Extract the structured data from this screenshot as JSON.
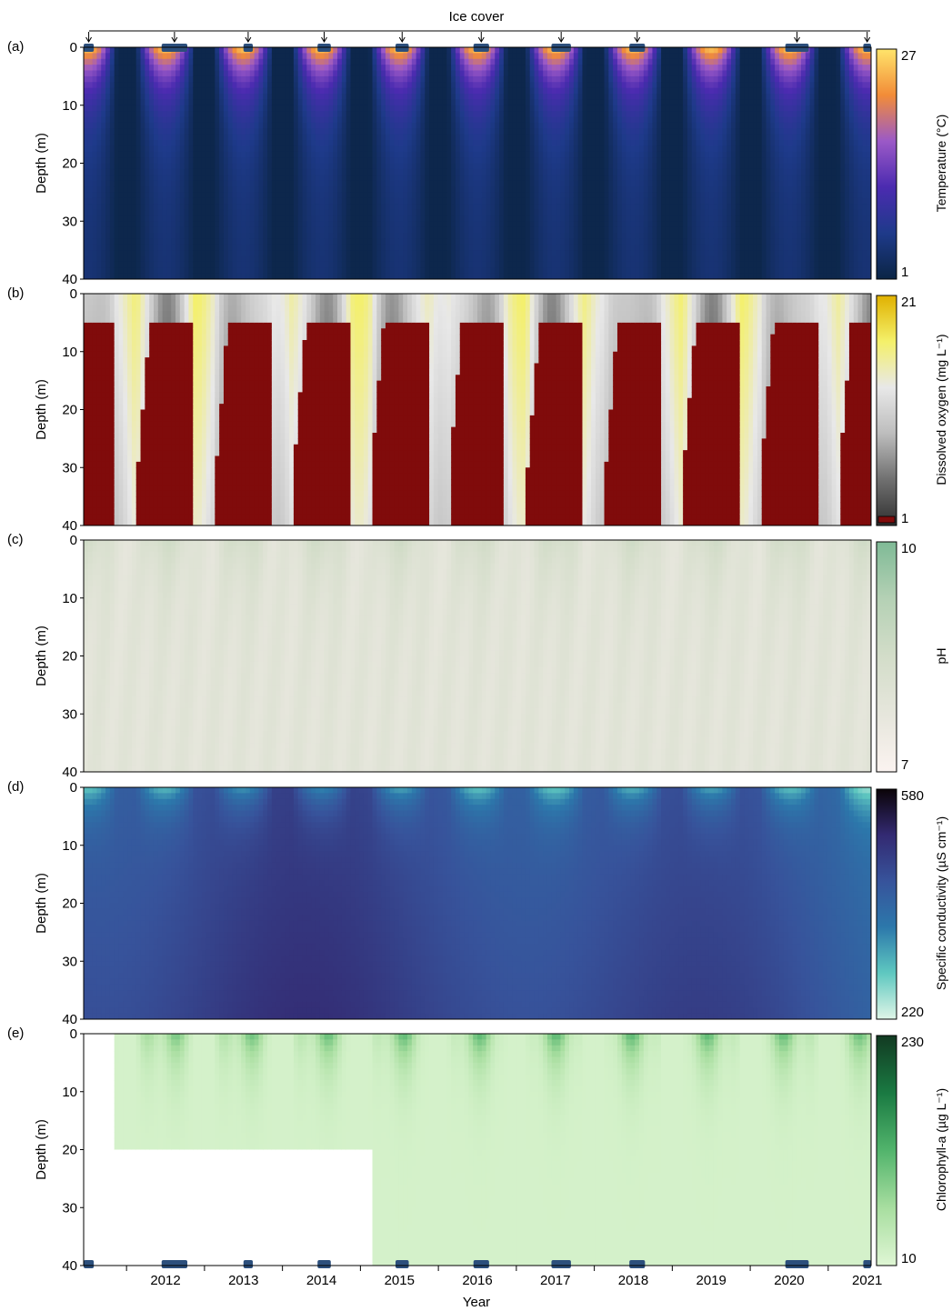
{
  "figure": {
    "ice_cover_label": "Ice cover",
    "x_axis_label": "Year",
    "x_ticks": [
      "2012",
      "2013",
      "2014",
      "2015",
      "2016",
      "2017",
      "2018",
      "2019",
      "2020",
      "2021"
    ],
    "ice_cover_periods": [
      [
        2011.45,
        2011.58
      ],
      [
        2012.45,
        2012.78
      ],
      [
        2013.5,
        2013.62
      ],
      [
        2014.45,
        2014.62
      ],
      [
        2015.45,
        2015.62
      ],
      [
        2016.45,
        2016.65
      ],
      [
        2017.45,
        2017.7
      ],
      [
        2018.45,
        2018.65
      ],
      [
        2020.45,
        2020.75
      ],
      [
        2021.45,
        2021.55
      ]
    ]
  },
  "chart_data": [
    {
      "type": "heatmap",
      "panel_label": "(a)",
      "ylabel": "Depth (m)",
      "y_ticks": [
        "0",
        "10",
        "20",
        "30",
        "40"
      ],
      "ylim": [
        0,
        40
      ],
      "colorbar_label": "Temperature (°C)",
      "colorbar_max": "27",
      "colorbar_min": "1",
      "colors": [
        "#0b2545",
        "#1e3a8a",
        "#4b2bb0",
        "#9b59c7",
        "#f28c38",
        "#ffe46b"
      ]
    },
    {
      "type": "heatmap",
      "panel_label": "(b)",
      "ylabel": "Depth (m)",
      "y_ticks": [
        "0",
        "10",
        "20",
        "30",
        "40"
      ],
      "ylim": [
        0,
        40
      ],
      "colorbar_label": "Dissolved oxygen (mg L⁻¹)",
      "colorbar_max": "21",
      "colorbar_min": "1",
      "anoxic_color": "#800b0b",
      "colors": [
        "#303030",
        "#707070",
        "#bdbdbd",
        "#e8e8e8",
        "#f4f06a",
        "#e0b100"
      ]
    },
    {
      "type": "heatmap",
      "panel_label": "(c)",
      "ylabel": "Depth (m)",
      "y_ticks": [
        "0",
        "10",
        "20",
        "30",
        "40"
      ],
      "ylim": [
        0,
        40
      ],
      "colorbar_label": "pH",
      "colorbar_max": "10",
      "colorbar_min": "7",
      "colors": [
        "#fbf3f0",
        "#e6e6dc",
        "#d3ddc9",
        "#b5d1b5",
        "#7fba96"
      ]
    },
    {
      "type": "heatmap",
      "panel_label": "(d)",
      "ylabel": "Depth (m)",
      "y_ticks": [
        "0",
        "10",
        "20",
        "30",
        "40"
      ],
      "ylim": [
        0,
        40
      ],
      "colorbar_label": "Specific conductivity (µS cm⁻¹)",
      "colorbar_max": "580",
      "colorbar_min": "220",
      "colors": [
        "#dff5e7",
        "#5fc8c0",
        "#2c78ab",
        "#37539b",
        "#332a72",
        "#0b0408"
      ]
    },
    {
      "type": "heatmap",
      "panel_label": "(e)",
      "ylabel": "Depth (m)",
      "y_ticks": [
        "0",
        "10",
        "20",
        "30",
        "40"
      ],
      "ylim": [
        0,
        40
      ],
      "colorbar_label": "Chlorophyll-a (µg L⁻¹)",
      "colorbar_max": "230",
      "colorbar_min": "10",
      "colors": [
        "#dff6d4",
        "#a8dea0",
        "#52b46c",
        "#1a7a42",
        "#123a22"
      ]
    }
  ]
}
